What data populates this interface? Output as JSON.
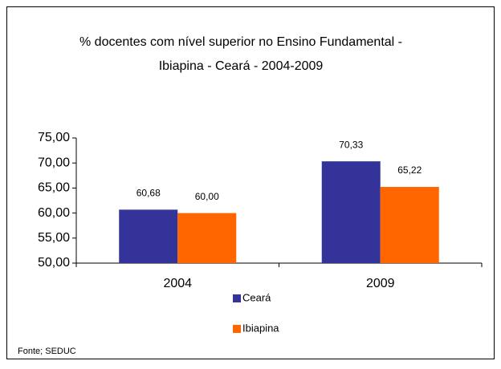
{
  "chart_data": {
    "type": "bar",
    "title": [
      "% docentes com nível  superior no Ensino Fundamental -",
      "Ibiapina -  Ceará - 2004-2009"
    ],
    "categories": [
      "2004",
      "2009"
    ],
    "series": [
      {
        "name": "Ceará",
        "color": "#333399",
        "values": [
          60.68,
          70.33
        ],
        "value_labels": [
          "60,68",
          "70,33"
        ]
      },
      {
        "name": "Ibiapina",
        "color": "#ff6600",
        "values": [
          60.0,
          65.22
        ],
        "value_labels": [
          "60,00",
          "65,22"
        ]
      }
    ],
    "ylim": [
      50,
      75
    ],
    "yticks": [
      {
        "value": 50,
        "label": "50,00"
      },
      {
        "value": 55,
        "label": "55,00"
      },
      {
        "value": 60,
        "label": "60,00"
      },
      {
        "value": 65,
        "label": "65,00"
      },
      {
        "value": 70,
        "label": "70,00"
      },
      {
        "value": 75,
        "label": "75,00"
      }
    ],
    "source": "Fonte; SEDUC"
  }
}
